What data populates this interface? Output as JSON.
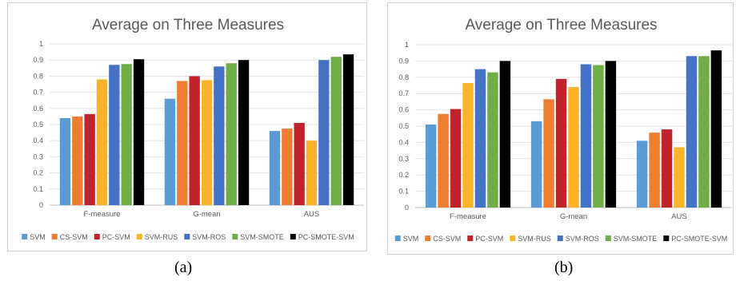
{
  "chart_data": [
    {
      "type": "bar",
      "title": "Average on Three Measures",
      "categories": [
        "F-measure",
        "G-mean",
        "AUS"
      ],
      "ylim": [
        0,
        1
      ],
      "yticks": [
        "0",
        "0.1",
        "0.2",
        "0.3",
        "0.4",
        "0.5",
        "0.6",
        "0.7",
        "0.8",
        "0.9",
        "1"
      ],
      "grid": true,
      "legend_position": "bottom",
      "series": [
        {
          "name": "SVM",
          "color": "#5b9bd5",
          "values": [
            0.54,
            0.66,
            0.46
          ]
        },
        {
          "name": "CS-SVM",
          "color": "#ed7d31",
          "values": [
            0.55,
            0.77,
            0.475
          ]
        },
        {
          "name": "PC-SVM",
          "color": "#c0232c",
          "values": [
            0.565,
            0.8,
            0.51
          ]
        },
        {
          "name": "SVM-RUS",
          "color": "#fbb42a",
          "values": [
            0.78,
            0.775,
            0.4
          ]
        },
        {
          "name": "SVM-ROS",
          "color": "#4472c4",
          "values": [
            0.87,
            0.86,
            0.9
          ]
        },
        {
          "name": "SVM-SMOTE",
          "color": "#70ad47",
          "values": [
            0.875,
            0.88,
            0.92
          ]
        },
        {
          "name": "PC-SMOTE-SVM",
          "color": "#000000",
          "values": [
            0.905,
            0.9,
            0.935
          ]
        }
      ]
    },
    {
      "type": "bar",
      "title": "Average on Three Measures",
      "categories": [
        "F-measure",
        "G-mean",
        "AUS"
      ],
      "ylim": [
        0,
        1
      ],
      "yticks": [
        "0",
        "0.1",
        "0.2",
        "0.3",
        "0.4",
        "0.5",
        "0.6",
        "0.7",
        "0.8",
        "0.9",
        "1"
      ],
      "grid": true,
      "legend_position": "bottom",
      "series": [
        {
          "name": "SVM",
          "color": "#5b9bd5",
          "values": [
            0.51,
            0.53,
            0.41
          ]
        },
        {
          "name": "CS-SVM",
          "color": "#ed7d31",
          "values": [
            0.575,
            0.665,
            0.46
          ]
        },
        {
          "name": "PC-SVM",
          "color": "#c0232c",
          "values": [
            0.605,
            0.79,
            0.48
          ]
        },
        {
          "name": "SVM-RUS",
          "color": "#fbb42a",
          "values": [
            0.765,
            0.74,
            0.37
          ]
        },
        {
          "name": "SVM-ROS",
          "color": "#4472c4",
          "values": [
            0.85,
            0.88,
            0.93
          ]
        },
        {
          "name": "SVM-SMOTE",
          "color": "#70ad47",
          "values": [
            0.83,
            0.875,
            0.93
          ]
        },
        {
          "name": "PC-SMOTE-SVM",
          "color": "#000000",
          "values": [
            0.9,
            0.9,
            0.965
          ]
        }
      ]
    }
  ],
  "captions": [
    "(a)",
    "(b)"
  ]
}
